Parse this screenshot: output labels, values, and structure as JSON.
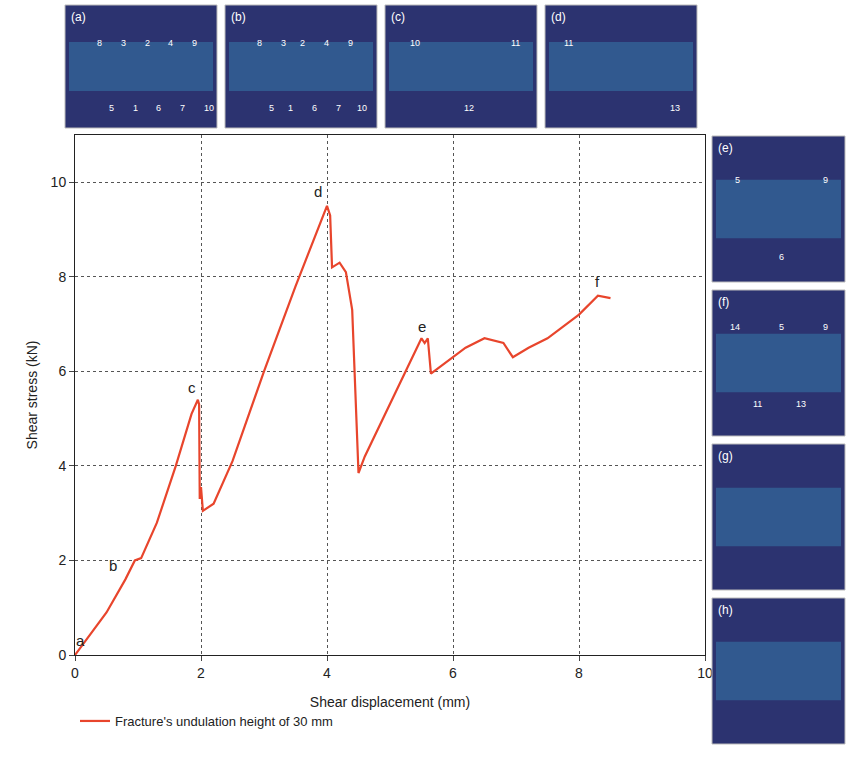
{
  "chart_data": {
    "type": "line",
    "x_label": "Shear displacement (mm)",
    "y_label": "Shear stress (kN)",
    "xlim": [
      0,
      10
    ],
    "xticks": [
      0,
      2,
      4,
      6,
      8,
      10
    ],
    "ylim": [
      0,
      11
    ],
    "yticks": [
      0,
      2,
      4,
      6,
      8,
      10
    ],
    "grid": true,
    "legend": "bottom",
    "series": [
      {
        "name": "Fracture's undulation height of 30 mm",
        "color": "#e8452c",
        "line_style": "solid",
        "x": [
          0,
          0.5,
          0.8,
          0.95,
          1.05,
          1.3,
          1.6,
          1.85,
          1.95,
          1.97,
          1.98,
          2.0,
          2.03,
          2.2,
          2.5,
          3.0,
          3.5,
          4.0,
          4.05,
          4.08,
          4.2,
          4.3,
          4.4,
          4.45,
          4.5,
          4.6,
          5.0,
          5.5,
          5.55,
          5.6,
          5.65,
          5.8,
          6.2,
          6.5,
          6.8,
          6.95,
          7.2,
          7.5,
          8.0,
          8.3,
          8.5
        ],
        "values": [
          0,
          0.9,
          1.6,
          2.0,
          2.05,
          2.8,
          4.0,
          5.1,
          5.4,
          5.3,
          3.3,
          3.55,
          3.05,
          3.2,
          4.1,
          6.0,
          7.8,
          9.5,
          9.3,
          8.2,
          8.3,
          8.1,
          7.3,
          5.5,
          3.85,
          4.2,
          5.3,
          6.7,
          6.6,
          6.7,
          5.95,
          6.1,
          6.5,
          6.7,
          6.6,
          6.3,
          6.5,
          6.7,
          7.2,
          7.6,
          7.55
        ]
      }
    ],
    "annotations": [
      {
        "text": "a",
        "x": 0.08,
        "y": 0.3
      },
      {
        "text": "b",
        "x": 0.6,
        "y": 1.9
      },
      {
        "text": "c",
        "x": 1.85,
        "y": 5.65
      },
      {
        "text": "d",
        "x": 3.85,
        "y": 9.8
      },
      {
        "text": "e",
        "x": 5.5,
        "y": 6.95
      },
      {
        "text": "f",
        "x": 8.3,
        "y": 7.9
      }
    ],
    "insets_top": [
      {
        "label": "(a)",
        "marks": [
          "8",
          "5",
          "3",
          "1",
          "2",
          "6",
          "4",
          "7",
          "9",
          "10"
        ]
      },
      {
        "label": "(b)",
        "marks": [
          "8",
          "5",
          "3",
          "1",
          "2",
          "6",
          "4",
          "7",
          "9",
          "10"
        ]
      },
      {
        "label": "(c)",
        "marks": [
          "10",
          "12",
          "11"
        ]
      },
      {
        "label": "(d)",
        "marks": [
          "11",
          "13"
        ]
      }
    ],
    "insets_right": [
      {
        "label": "(e)",
        "marks": [
          "5",
          "6",
          "9"
        ]
      },
      {
        "label": "(f)",
        "marks": [
          "14",
          "11",
          "5",
          "13",
          "9"
        ]
      },
      {
        "label": "(g)",
        "marks": []
      },
      {
        "label": "(h)",
        "marks": []
      }
    ]
  }
}
